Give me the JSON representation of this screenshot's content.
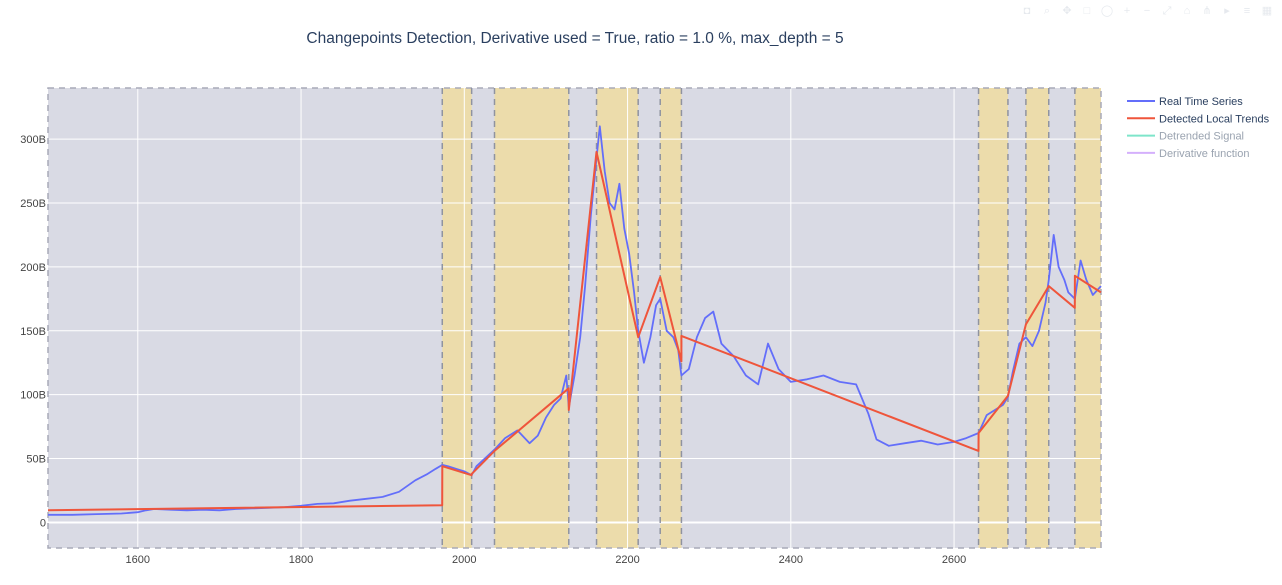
{
  "modebar": {
    "icons": [
      "camera-icon",
      "zoom-icon",
      "pan-icon",
      "box-select-icon",
      "lasso-icon",
      "zoom-in-icon",
      "zoom-out-icon",
      "autoscale-icon",
      "reset-icon",
      "spike-icon",
      "hover-closest-icon",
      "hover-compare-icon",
      "plotly-logo-icon"
    ]
  },
  "chart_data": {
    "type": "line",
    "title": "Changepoints Detection, Derivative used = True, ratio = 1.0 %, max_depth = 5",
    "xlim": [
      1490,
      2780
    ],
    "ylim": [
      -20000000000,
      340000000000
    ],
    "xticks": [
      1600,
      1800,
      2000,
      2200,
      2400,
      2600
    ],
    "xtick_labels": [
      "1600",
      "1800",
      "2000",
      "2200",
      "2400",
      "2600"
    ],
    "yticks": [
      0,
      50000000000,
      100000000000,
      150000000000,
      200000000000,
      250000000000,
      300000000000
    ],
    "ytick_labels": [
      "0",
      "50B",
      "100B",
      "150B",
      "200B",
      "250B",
      "300B"
    ],
    "grid": true,
    "legend_position": "top-right",
    "background_color": "#d9dae4",
    "highlight_color": "#ecdcab",
    "changepoints": [
      1973,
      2009,
      2037,
      2128,
      2162,
      2213,
      2240,
      2266,
      2630,
      2666,
      2688,
      2716,
      2748
    ],
    "highlight_regions": [
      [
        1973,
        2009
      ],
      [
        2037,
        2128
      ],
      [
        2162,
        2213
      ],
      [
        2240,
        2266
      ],
      [
        2630,
        2666
      ],
      [
        2688,
        2716
      ],
      [
        2748,
        2780
      ]
    ],
    "series": [
      {
        "name": "Real Time Series",
        "color": "#636efa",
        "x": [
          1490,
          1520,
          1550,
          1580,
          1600,
          1610,
          1620,
          1640,
          1660,
          1680,
          1700,
          1720,
          1740,
          1760,
          1780,
          1800,
          1820,
          1840,
          1860,
          1880,
          1900,
          1920,
          1940,
          1955,
          1965,
          1973,
          1980,
          1990,
          2000,
          2009,
          2015,
          2025,
          2037,
          2050,
          2065,
          2080,
          2090,
          2100,
          2110,
          2118,
          2125,
          2128,
          2135,
          2142,
          2148,
          2155,
          2162,
          2166,
          2172,
          2178,
          2184,
          2190,
          2196,
          2202,
          2208,
          2213,
          2220,
          2228,
          2235,
          2240,
          2248,
          2256,
          2262,
          2266,
          2275,
          2285,
          2295,
          2305,
          2315,
          2330,
          2345,
          2360,
          2372,
          2385,
          2400,
          2420,
          2440,
          2460,
          2480,
          2495,
          2505,
          2520,
          2540,
          2560,
          2580,
          2600,
          2615,
          2630,
          2640,
          2650,
          2660,
          2666,
          2672,
          2680,
          2688,
          2696,
          2704,
          2712,
          2716,
          2722,
          2728,
          2735,
          2740,
          2748,
          2755,
          2762,
          2770,
          2780
        ],
        "y": [
          6000000000,
          6000000000,
          6500000000,
          7000000000,
          8000000000,
          9500000000,
          10500000000,
          10000000000,
          9500000000,
          10000000000,
          9500000000,
          10500000000,
          11000000000,
          11500000000,
          12000000000,
          13000000000,
          14500000000,
          15000000000,
          17000000000,
          18500000000,
          20000000000,
          24000000000,
          33000000000,
          38000000000,
          42000000000,
          45000000000,
          44000000000,
          42000000000,
          40000000000,
          37000000000,
          44000000000,
          50000000000,
          57000000000,
          66000000000,
          72000000000,
          62000000000,
          68000000000,
          82000000000,
          92000000000,
          97000000000,
          115000000000,
          90000000000,
          115000000000,
          145000000000,
          185000000000,
          240000000000,
          285000000000,
          310000000000,
          275000000000,
          250000000000,
          245000000000,
          265000000000,
          230000000000,
          210000000000,
          180000000000,
          150000000000,
          125000000000,
          145000000000,
          170000000000,
          175000000000,
          150000000000,
          145000000000,
          135000000000,
          115000000000,
          120000000000,
          145000000000,
          160000000000,
          165000000000,
          140000000000,
          130000000000,
          115000000000,
          108000000000,
          140000000000,
          120000000000,
          110000000000,
          112000000000,
          115000000000,
          110000000000,
          108000000000,
          85000000000,
          65000000000,
          60000000000,
          62000000000,
          64000000000,
          61000000000,
          63000000000,
          66000000000,
          70000000000,
          84000000000,
          88000000000,
          92000000000,
          98000000000,
          118000000000,
          140000000000,
          145000000000,
          138000000000,
          150000000000,
          172000000000,
          190000000000,
          225000000000,
          200000000000,
          190000000000,
          180000000000,
          175000000000,
          205000000000,
          190000000000,
          178000000000,
          185000000000
        ]
      },
      {
        "name": "Detected Local Trends",
        "color": "#ef553b",
        "x": [
          1490,
          1972.9,
          1973,
          2009,
          2009.1,
          2037,
          2127.9,
          2128,
          2162,
          2213,
          2240,
          2265.9,
          2266,
          2629.9,
          2630,
          2666,
          2688,
          2716,
          2747.9,
          2748,
          2780
        ],
        "y": [
          9500000000,
          13500000000,
          44000000000,
          37000000000,
          38000000000,
          56000000000,
          105000000000,
          88000000000,
          290000000000,
          145000000000,
          192000000000,
          126000000000,
          146000000000,
          56000000000,
          70000000000,
          99000000000,
          155000000000,
          185000000000,
          168000000000,
          193000000000,
          180000000000
        ]
      },
      {
        "name": "Detrended Signal",
        "color": "#00cc96",
        "visible": "legendonly",
        "x": [],
        "y": []
      },
      {
        "name": "Derivative function",
        "color": "#ab63fa",
        "visible": "legendonly",
        "x": [],
        "y": []
      }
    ]
  }
}
